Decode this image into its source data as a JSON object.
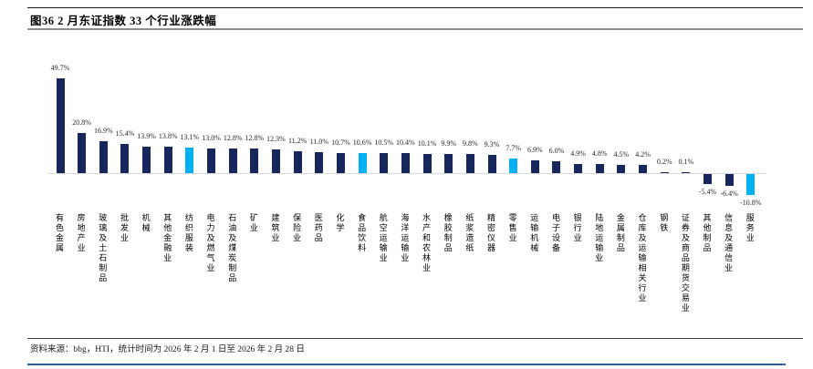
{
  "figure": {
    "title": "图36 2 月东证指数 33 个行业涨跌幅",
    "source": "资料来源：bbg，HTI，统计时间为 2026 年 2 月 1 日至 2026 年 2 月 28 日"
  },
  "colors": {
    "bar_primary": "#17265c",
    "bar_highlight": "#00b0f0",
    "axis_line": "#d9d9d9",
    "bottom_accent": "#2b5ca9"
  },
  "chart_data": {
    "type": "bar",
    "title": "图36 2 月东证指数 33 个行业涨跌幅",
    "unit": "%",
    "grid": false,
    "legend": false,
    "y_axis_visible": false,
    "ylim": [
      -15,
      55
    ],
    "categories": [
      "有色金属",
      "房地产业",
      "玻璃及土石制品",
      "批发业",
      "机械",
      "其他金融业",
      "纺织服装",
      "电力及燃气业",
      "石油及煤炭制品",
      "矿业",
      "建筑业",
      "保险业",
      "医药品",
      "化学",
      "食品饮料",
      "航空运输业",
      "海洋运输业",
      "水产和农林业",
      "橡胶制品",
      "纸浆造纸",
      "精密仪器",
      "零售业",
      "运输机械",
      "电子设备",
      "银行业",
      "陆地运输业",
      "金属制品",
      "仓库及运输相关行业",
      "钢铁",
      "证券及商品期货交易业",
      "其他制品",
      "信息及通信业",
      "服务业"
    ],
    "values": [
      49.7,
      20.8,
      16.9,
      15.4,
      13.9,
      13.8,
      13.1,
      13.0,
      12.8,
      12.8,
      12.3,
      11.2,
      11.0,
      10.7,
      10.6,
      10.5,
      10.4,
      10.1,
      9.9,
      9.8,
      9.3,
      7.7,
      6.9,
      6.0,
      4.9,
      4.8,
      4.5,
      4.2,
      0.2,
      0.1,
      -5.4,
      -6.4,
      -10.8
    ],
    "value_labels": [
      "49.7%",
      "20.8%",
      "16.9%",
      "15.4%",
      "13.9%",
      "13.8%",
      "13.1%",
      "13.0%",
      "12.8%",
      "12.8%",
      "12.3%",
      "11.2%",
      "11.0%",
      "10.7%",
      "10.6%",
      "10.5%",
      "10.4%",
      "10.1%",
      "9.9%",
      "9.8%",
      "9.3%",
      "7.7%",
      "6.9%",
      "6.0%",
      "4.9%",
      "4.8%",
      "4.5%",
      "4.2%",
      "0.2%",
      "0.1%",
      "-5.4%",
      "-6.4%",
      "-10.8%"
    ],
    "highlight_indices": [
      6,
      14,
      21,
      32
    ],
    "highlighted_categories": [
      "纺织服装",
      "食品饮料",
      "零售业",
      "服务业"
    ]
  }
}
